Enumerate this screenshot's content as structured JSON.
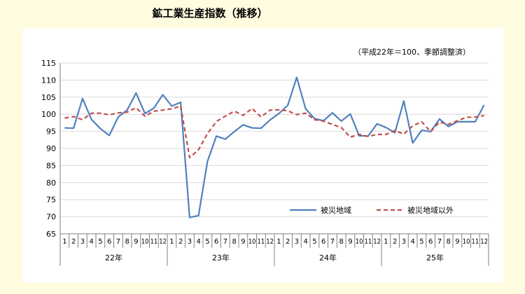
{
  "chart_data": {
    "type": "line",
    "title": "鉱工業生産指数（推移）",
    "subtitle": "（平成22年＝100、季節調整済）",
    "xlabel": "",
    "ylabel": "",
    "ylim": [
      65,
      115
    ],
    "yticks": [
      65,
      70,
      75,
      80,
      85,
      90,
      95,
      100,
      105,
      110,
      115
    ],
    "grid": "horizontal",
    "legend_position": "lower-right",
    "months": [
      "1",
      "2",
      "3",
      "4",
      "5",
      "6",
      "7",
      "8",
      "9",
      "10",
      "11",
      "12",
      "1",
      "2",
      "3",
      "4",
      "5",
      "6",
      "7",
      "8",
      "9",
      "10",
      "11",
      "12",
      "1",
      "2",
      "3",
      "4",
      "5",
      "6",
      "7",
      "8",
      "9",
      "10",
      "11",
      "12",
      "1",
      "2",
      "3",
      "4",
      "5",
      "6",
      "7",
      "8",
      "9",
      "10",
      "11",
      "12"
    ],
    "years": [
      "22年",
      "23年",
      "24年",
      "25年"
    ],
    "series": [
      {
        "name": "被災地域",
        "color": "#4f81bd",
        "style": "solid",
        "values": [
          96.0,
          95.9,
          104.6,
          98.5,
          95.8,
          93.8,
          99.2,
          101.2,
          106.2,
          100.2,
          101.8,
          105.7,
          102.4,
          103.5,
          69.8,
          70.3,
          86.2,
          93.6,
          92.7,
          94.9,
          96.9,
          96.0,
          95.9,
          98.3,
          100.2,
          102.6,
          110.8,
          101.6,
          98.7,
          98.1,
          100.4,
          98.0,
          100.1,
          93.7,
          93.6,
          97.2,
          96.1,
          94.6,
          103.9,
          91.6,
          95.3,
          94.9,
          98.6,
          96.4,
          97.8,
          97.8,
          97.8,
          102.7
        ]
      },
      {
        "name": "被災地域以外",
        "color": "#c0504d",
        "style": "dashed",
        "values": [
          98.9,
          99.3,
          98.4,
          100.3,
          100.3,
          99.8,
          100.4,
          100.6,
          101.9,
          99.4,
          100.9,
          101.2,
          101.6,
          102.4,
          87.3,
          89.6,
          94.3,
          97.9,
          99.4,
          100.9,
          99.7,
          101.7,
          99.2,
          101.2,
          101.3,
          101.0,
          99.9,
          100.3,
          98.4,
          98.0,
          97.0,
          96.1,
          93.3,
          94.1,
          93.5,
          94.1,
          94.1,
          95.2,
          94.2,
          96.6,
          97.8,
          94.9,
          97.7,
          97.0,
          98.1,
          99.1,
          99.2,
          99.6
        ]
      }
    ]
  }
}
